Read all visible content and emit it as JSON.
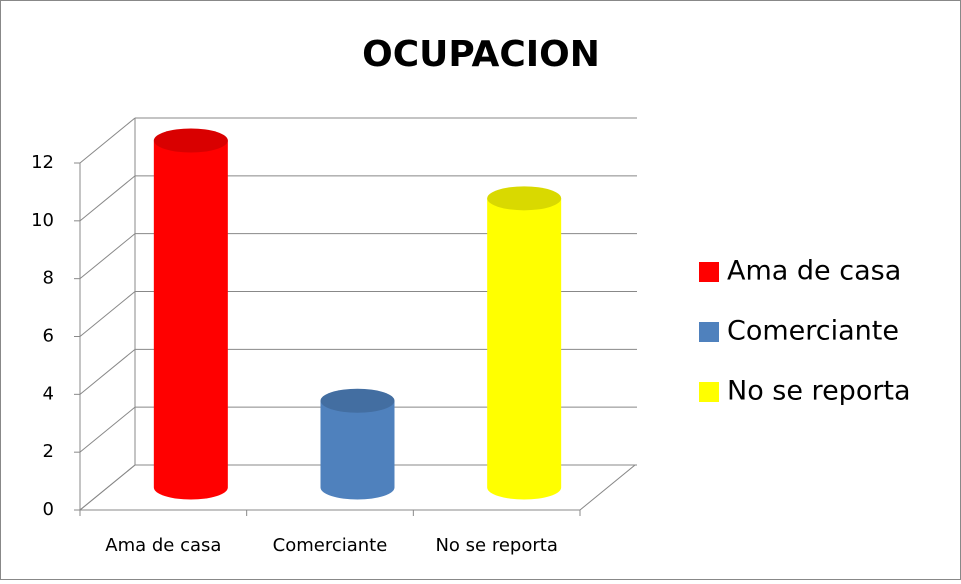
{
  "chart_data": {
    "type": "bar3d",
    "title": "OCUPACION",
    "categories": [
      "Ama de casa",
      "Comerciante",
      "No se reporta"
    ],
    "series": [
      {
        "name": "Ama de casa",
        "color": "#ff0000"
      },
      {
        "name": "Comerciante",
        "color": "#4f81bd"
      },
      {
        "name": "No se reporta",
        "color": "#ffff00"
      }
    ],
    "values": [
      12,
      3,
      10
    ],
    "ylim": [
      0,
      12
    ],
    "yticks": [
      0,
      2,
      4,
      6,
      8,
      10,
      12
    ],
    "grid": true,
    "legend": "right"
  }
}
